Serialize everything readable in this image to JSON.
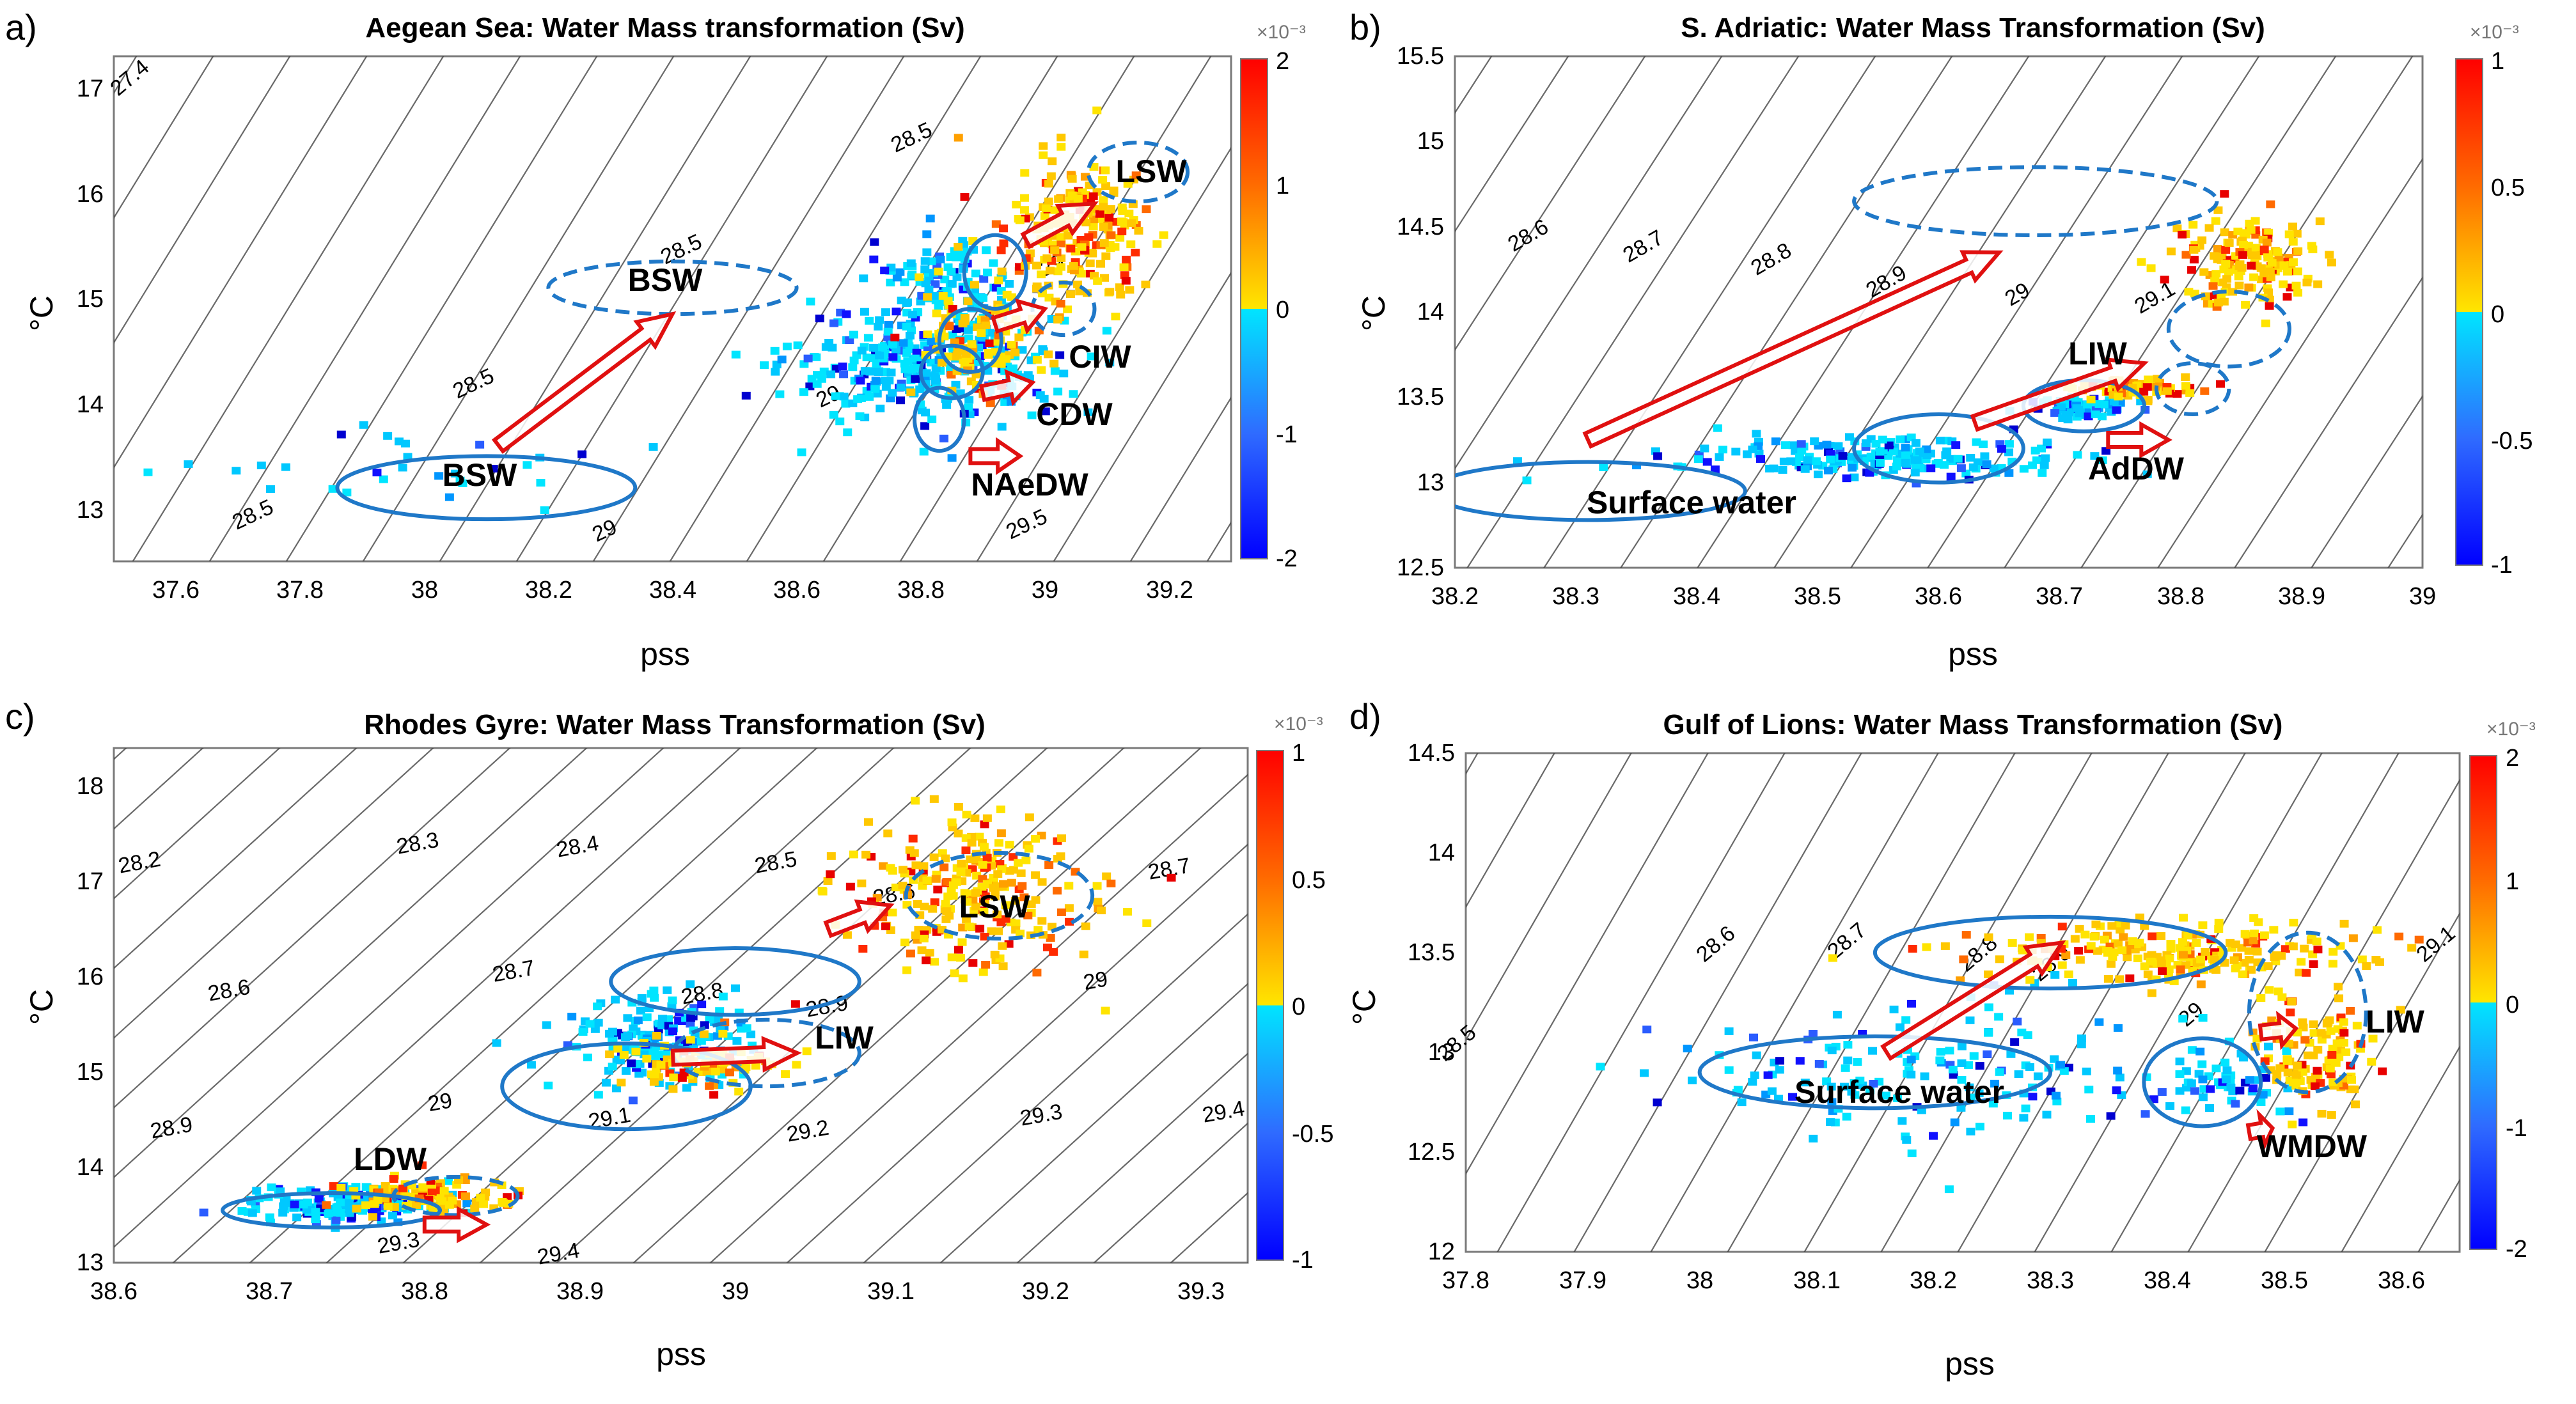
{
  "chart_data": [
    {
      "type": "scatter",
      "panel_label": "a)",
      "title": "Aegean Sea: Water Mass transformation (Sv)",
      "xlabel": "pss",
      "ylabel": "°C",
      "xlim": [
        37.5,
        39.3
      ],
      "ylim": [
        12.5,
        17.3
      ],
      "xticks": [
        "37.6",
        "37.8",
        "38",
        "38.2",
        "38.4",
        "38.6",
        "38.8",
        "39",
        "39.2"
      ],
      "yticks": [
        "13",
        "14",
        "15",
        "16",
        "17"
      ],
      "colorbar": {
        "ticks": [
          "2",
          "1",
          "0",
          "-1",
          "-2"
        ],
        "exponent": "×10⁻³",
        "range": [
          -2,
          2
        ]
      },
      "isopycnal_labels": [
        "27.4",
        "28.5",
        "28.5",
        "28.5",
        "28.5",
        "29",
        "29",
        "29",
        "29.5"
      ],
      "clusters": [
        {
          "sign": "neg",
          "center": [
            38.8,
            14.4
          ],
          "spread": [
            0.22,
            0.6
          ],
          "count": 330
        },
        {
          "sign": "neg",
          "center": [
            38.85,
            15.2
          ],
          "spread": [
            0.12,
            0.4
          ],
          "count": 100
        },
        {
          "sign": "pos",
          "center": [
            39.05,
            15.6
          ],
          "spread": [
            0.12,
            0.7
          ],
          "count": 220
        },
        {
          "sign": "pos",
          "center": [
            38.9,
            14.6
          ],
          "spread": [
            0.12,
            0.5
          ],
          "count": 100
        },
        {
          "sign": "neg",
          "center": [
            38.0,
            13.4
          ],
          "spread": [
            0.4,
            0.4
          ],
          "count": 30
        }
      ],
      "ellipses": [
        {
          "label": "BSW",
          "center": [
            38.1,
            13.2
          ],
          "radii": [
            0.24,
            0.3
          ],
          "style": "solid"
        },
        {
          "label": "BSW",
          "center": [
            38.4,
            15.1
          ],
          "radii": [
            0.2,
            0.25
          ],
          "style": "dashed"
        },
        {
          "label": "LSW",
          "center": [
            39.15,
            16.2
          ],
          "radii": [
            0.08,
            0.28
          ],
          "style": "dashed"
        },
        {
          "label": "CIW",
          "center": [
            39.03,
            14.9
          ],
          "radii": [
            0.05,
            0.25
          ],
          "style": "dashed"
        },
        {
          "label": "",
          "center": [
            38.92,
            15.25
          ],
          "radii": [
            0.05,
            0.35
          ],
          "style": "solid"
        },
        {
          "label": "",
          "center": [
            38.88,
            14.6
          ],
          "radii": [
            0.05,
            0.3
          ],
          "style": "solid"
        },
        {
          "label": "",
          "center": [
            38.85,
            14.3
          ],
          "radii": [
            0.05,
            0.25
          ],
          "style": "solid"
        },
        {
          "label": "",
          "center": [
            38.83,
            13.85
          ],
          "radii": [
            0.04,
            0.3
          ],
          "style": "solid"
        }
      ],
      "arrows": [
        {
          "from": [
            38.12,
            13.6
          ],
          "to": [
            38.4,
            14.85
          ]
        },
        {
          "from": [
            38.97,
            15.55
          ],
          "to": [
            39.08,
            15.9
          ]
        },
        {
          "from": [
            38.92,
            14.75
          ],
          "to": [
            39.0,
            14.9
          ]
        },
        {
          "from": [
            38.9,
            14.1
          ],
          "to": [
            38.98,
            14.2
          ]
        },
        {
          "from": [
            38.88,
            13.5
          ],
          "to": [
            38.96,
            13.5
          ]
        }
      ],
      "annotations": [
        {
          "text": "BSW",
          "at": [
            38.1,
            13.15
          ]
        },
        {
          "text": "BSW",
          "at": [
            38.34,
            15.1
          ]
        },
        {
          "text": "LSW",
          "at": [
            39.14,
            16.25
          ]
        },
        {
          "text": "CIW",
          "at": [
            39.1,
            14.55
          ]
        },
        {
          "text": "CDW",
          "at": [
            39.06,
            13.8
          ]
        },
        {
          "text": "NAeDW",
          "at": [
            38.98,
            13.05
          ]
        }
      ]
    },
    {
      "type": "scatter",
      "panel_label": "b)",
      "title": "S. Adriatic: Water Mass Transformation (Sv)",
      "xlabel": "pss",
      "ylabel": "°C",
      "xlim": [
        38.2,
        39.0
      ],
      "ylim": [
        12.5,
        15.5
      ],
      "xticks": [
        "38.2",
        "38.3",
        "38.4",
        "38.5",
        "38.6",
        "38.7",
        "38.8",
        "38.9",
        "39"
      ],
      "yticks": [
        "12.5",
        "13",
        "13.5",
        "14",
        "14.5",
        "15",
        "15.5"
      ],
      "colorbar": {
        "ticks": [
          "1",
          "0.5",
          "0",
          "-0.5",
          "-1"
        ],
        "exponent": "×10⁻³",
        "range": [
          -1,
          1
        ]
      },
      "isopycnal_labels": [
        "28.6",
        "28.7",
        "28.8",
        "28.9",
        "29",
        "29.1"
      ],
      "clusters": [
        {
          "sign": "neg",
          "center": [
            38.55,
            13.15
          ],
          "spread": [
            0.18,
            0.12
          ],
          "count": 200
        },
        {
          "sign": "neg",
          "center": [
            38.72,
            13.45
          ],
          "spread": [
            0.04,
            0.06
          ],
          "count": 60
        },
        {
          "sign": "pos",
          "center": [
            38.85,
            14.3
          ],
          "spread": [
            0.06,
            0.25
          ],
          "count": 170
        },
        {
          "sign": "pos",
          "center": [
            38.76,
            13.55
          ],
          "spread": [
            0.05,
            0.06
          ],
          "count": 60
        }
      ],
      "ellipses": [
        {
          "label": "Surface water",
          "center": [
            38.31,
            12.95
          ],
          "radii": [
            0.13,
            0.17
          ],
          "style": "solid"
        },
        {
          "label": "",
          "center": [
            38.6,
            13.2
          ],
          "radii": [
            0.07,
            0.2
          ],
          "style": "solid"
        },
        {
          "label": "",
          "center": [
            38.72,
            13.45
          ],
          "radii": [
            0.05,
            0.15
          ],
          "style": "solid"
        },
        {
          "label": "",
          "center": [
            38.68,
            14.65
          ],
          "radii": [
            0.15,
            0.2
          ],
          "style": "dashed"
        },
        {
          "label": "",
          "center": [
            38.84,
            13.9
          ],
          "radii": [
            0.05,
            0.22
          ],
          "style": "dashed"
        },
        {
          "label": "",
          "center": [
            38.81,
            13.55
          ],
          "radii": [
            0.03,
            0.15
          ],
          "style": "dashed"
        }
      ],
      "arrows": [
        {
          "from": [
            38.31,
            13.25
          ],
          "to": [
            38.65,
            14.35
          ]
        },
        {
          "from": [
            38.63,
            13.35
          ],
          "to": [
            38.77,
            13.7
          ]
        },
        {
          "from": [
            38.74,
            13.25
          ],
          "to": [
            38.79,
            13.25
          ]
        }
      ],
      "annotations": [
        {
          "text": "Surface water",
          "at": [
            38.38,
            12.93
          ]
        },
        {
          "text": "LIW",
          "at": [
            38.74,
            13.75
          ]
        },
        {
          "text": "AdDW",
          "at": [
            38.78,
            13.05
          ]
        }
      ]
    },
    {
      "type": "scatter",
      "panel_label": "c)",
      "title": "Rhodes Gyre: Water Mass Transformation (Sv)",
      "xlabel": "pss",
      "ylabel": "°C",
      "xlim": [
        38.6,
        39.33
      ],
      "ylim": [
        13.0,
        18.4
      ],
      "xticks": [
        "38.6",
        "38.7",
        "38.8",
        "38.9",
        "39",
        "39.1",
        "39.2",
        "39.3"
      ],
      "yticks": [
        "13",
        "14",
        "15",
        "16",
        "17",
        "18"
      ],
      "colorbar": {
        "ticks": [
          "1",
          "0.5",
          "0",
          "-0.5",
          "-1"
        ],
        "exponent": "×10⁻³",
        "range": [
          -1,
          1
        ]
      },
      "isopycnal_labels": [
        "28.2",
        "28.3",
        "28.4",
        "28.5",
        "28.6",
        "28.7",
        "28.6",
        "28.7",
        "28.8",
        "28.9",
        "29",
        "28.9",
        "29",
        "29.1",
        "29.2",
        "29.3",
        "29.4",
        "29.3",
        "29.4"
      ],
      "clusters": [
        {
          "sign": "neg",
          "center": [
            38.75,
            13.6
          ],
          "spread": [
            0.07,
            0.2
          ],
          "count": 160
        },
        {
          "sign": "pos",
          "center": [
            38.8,
            13.7
          ],
          "spread": [
            0.06,
            0.2
          ],
          "count": 100
        },
        {
          "sign": "neg",
          "center": [
            38.95,
            15.3
          ],
          "spread": [
            0.06,
            0.5
          ],
          "count": 180
        },
        {
          "sign": "pos",
          "center": [
            38.98,
            15.1
          ],
          "spread": [
            0.05,
            0.3
          ],
          "count": 80
        },
        {
          "sign": "pos",
          "center": [
            39.15,
            16.9
          ],
          "spread": [
            0.08,
            0.8
          ],
          "count": 260
        }
      ],
      "ellipses": [
        {
          "label": "LDW",
          "center": [
            38.74,
            13.55
          ],
          "radii": [
            0.07,
            0.18
          ],
          "style": "solid"
        },
        {
          "label": "",
          "center": [
            38.93,
            14.85
          ],
          "radii": [
            0.08,
            0.45
          ],
          "style": "solid"
        },
        {
          "label": "",
          "center": [
            39.0,
            15.95
          ],
          "radii": [
            0.08,
            0.35
          ],
          "style": "solid"
        },
        {
          "label": "LSW",
          "center": [
            39.17,
            16.85
          ],
          "radii": [
            0.06,
            0.45
          ],
          "style": "dashed"
        },
        {
          "label": "LIW",
          "center": [
            39.02,
            15.2
          ],
          "radii": [
            0.06,
            0.35
          ],
          "style": "dashed"
        },
        {
          "label": "",
          "center": [
            38.82,
            13.7
          ],
          "radii": [
            0.04,
            0.2
          ],
          "style": "dashed"
        }
      ],
      "arrows": [
        {
          "from": [
            38.96,
            15.15
          ],
          "to": [
            39.04,
            15.2
          ]
        },
        {
          "from": [
            39.06,
            16.5
          ],
          "to": [
            39.1,
            16.75
          ]
        },
        {
          "from": [
            38.8,
            13.4
          ],
          "to": [
            38.84,
            13.4
          ]
        }
      ],
      "annotations": [
        {
          "text": "LSW",
          "at": [
            39.15,
            16.8
          ]
        },
        {
          "text": "LIW",
          "at": [
            39.03,
            15.15
          ]
        },
        {
          "text": "LDW",
          "at": [
            38.75,
            13.85
          ]
        }
      ]
    },
    {
      "type": "scatter",
      "panel_label": "d)",
      "title": "Gulf of Lions: Water Mass Transformation (Sv)",
      "xlabel": "pss",
      "ylabel": "°C",
      "xlim": [
        37.8,
        38.65
      ],
      "ylim": [
        12.0,
        14.5
      ],
      "xticks": [
        "37.8",
        "37.9",
        "38",
        "38.1",
        "38.2",
        "38.3",
        "38.4",
        "38.5",
        "38.6"
      ],
      "yticks": [
        "12",
        "12.5",
        "13",
        "13.5",
        "14",
        "14.5"
      ],
      "colorbar": {
        "ticks": [
          "2",
          "1",
          "0",
          "-1",
          "-2"
        ],
        "exponent": "×10⁻³",
        "range": [
          -2,
          2
        ]
      },
      "isopycnal_labels": [
        "28.5",
        "28.6",
        "28.7",
        "28.8",
        "28.9",
        "29",
        "29.1"
      ],
      "clusters": [
        {
          "sign": "neg",
          "center": [
            38.2,
            12.9
          ],
          "spread": [
            0.25,
            0.35
          ],
          "count": 170
        },
        {
          "sign": "neg",
          "center": [
            38.45,
            12.85
          ],
          "spread": [
            0.05,
            0.15
          ],
          "count": 50
        },
        {
          "sign": "pos",
          "center": [
            38.4,
            13.5
          ],
          "spread": [
            0.18,
            0.15
          ],
          "count": 220
        },
        {
          "sign": "pos",
          "center": [
            38.52,
            13.0
          ],
          "spread": [
            0.06,
            0.3
          ],
          "count": 120
        }
      ],
      "ellipses": [
        {
          "label": "Surface water",
          "center": [
            38.15,
            12.9
          ],
          "radii": [
            0.15,
            0.18
          ],
          "style": "solid"
        },
        {
          "label": "",
          "center": [
            38.3,
            13.5
          ],
          "radii": [
            0.15,
            0.18
          ],
          "style": "solid"
        },
        {
          "label": "",
          "center": [
            38.43,
            12.85
          ],
          "radii": [
            0.05,
            0.22
          ],
          "style": "solid"
        },
        {
          "label": "",
          "center": [
            38.52,
            13.2
          ],
          "radii": [
            0.05,
            0.4
          ],
          "style": "dashed"
        }
      ],
      "arrows": [
        {
          "from": [
            38.16,
            13.0
          ],
          "to": [
            38.31,
            13.55
          ]
        },
        {
          "from": [
            38.48,
            13.1
          ],
          "to": [
            38.51,
            13.12
          ]
        },
        {
          "from": [
            38.47,
            12.6
          ],
          "to": [
            38.49,
            12.62
          ]
        }
      ],
      "annotations": [
        {
          "text": "Surface water",
          "at": [
            38.15,
            12.85
          ]
        },
        {
          "text": "LIW",
          "at": [
            38.57,
            13.0
          ]
        },
        {
          "text": "WMDW",
          "at": [
            38.54,
            12.45
          ]
        }
      ]
    }
  ]
}
